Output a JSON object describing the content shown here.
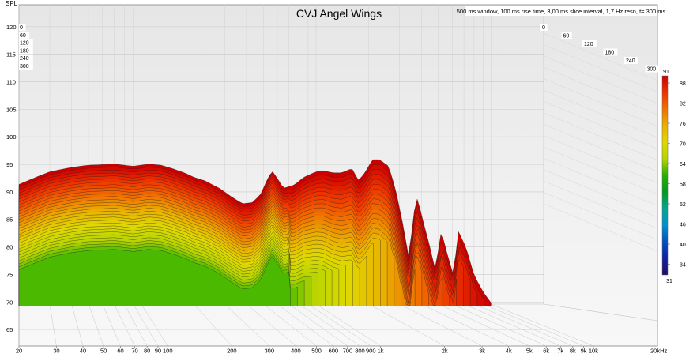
{
  "chart_data": {
    "type": "area",
    "title": "CVJ Angel Wings",
    "subtitle": "500 ms window, 100 ms rise time, 3,00 ms slice interval, 1,7 Hz resn, t= 300 ms",
    "ylabel": "SPL",
    "xlabel": "",
    "x_unit_label": "20kHz",
    "x_scale": "log",
    "xlim": [
      20,
      20000
    ],
    "ylim": [
      62,
      124
    ],
    "y_ticks": [
      65,
      70,
      75,
      80,
      85,
      90,
      95,
      100,
      105,
      110,
      115,
      120
    ],
    "x_ticks": [
      {
        "value": 20,
        "label": "20"
      },
      {
        "value": 30,
        "label": "30"
      },
      {
        "value": 40,
        "label": "40"
      },
      {
        "value": 50,
        "label": "50"
      },
      {
        "value": 60,
        "label": "60"
      },
      {
        "value": 70,
        "label": "70"
      },
      {
        "value": 80,
        "label": "80"
      },
      {
        "value": 90,
        "label": "90"
      },
      {
        "value": 100,
        "label": "100"
      },
      {
        "value": 200,
        "label": "200"
      },
      {
        "value": 300,
        "label": "300"
      },
      {
        "value": 400,
        "label": "400"
      },
      {
        "value": 500,
        "label": "500"
      },
      {
        "value": 600,
        "label": "600"
      },
      {
        "value": 700,
        "label": "700"
      },
      {
        "value": 800,
        "label": "800"
      },
      {
        "value": 900,
        "label": "900"
      },
      {
        "value": 1000,
        "label": "1k"
      },
      {
        "value": 2000,
        "label": "2k"
      },
      {
        "value": 3000,
        "label": "3k"
      },
      {
        "value": 4000,
        "label": "4k"
      },
      {
        "value": 5000,
        "label": "5k"
      },
      {
        "value": 6000,
        "label": "6k"
      },
      {
        "value": 7000,
        "label": "7k"
      },
      {
        "value": 8000,
        "label": "8k"
      },
      {
        "value": 9000,
        "label": "9k"
      },
      {
        "value": 10000,
        "label": "10k"
      }
    ],
    "time_axis_labels": [
      "0",
      "60",
      "120",
      "180",
      "240",
      "300"
    ],
    "time_axis_left_labels": [
      "0",
      "60",
      "120",
      "180",
      "240",
      "300"
    ],
    "colorbar": {
      "max_label": "91",
      "min_label": "31",
      "ticks": [
        "88",
        "82",
        "76",
        "70",
        "64",
        "58",
        "52",
        "46",
        "40",
        "34"
      ],
      "colors": [
        "#cc0000",
        "#ee3300",
        "#f07000",
        "#eab000",
        "#e0d800",
        "#b8d400",
        "#28b000",
        "#009a20",
        "#00a890",
        "#0090d0",
        "#0050c0",
        "#1020a0",
        "#201060"
      ]
    },
    "series": [
      {
        "values": [
          [
            20,
            91.5
          ],
          [
            25,
            92.8
          ],
          [
            30,
            93.8
          ],
          [
            40,
            94.6
          ],
          [
            50,
            95.0
          ],
          [
            60,
            95.1
          ],
          [
            70,
            95.2
          ],
          [
            80,
            95.0
          ],
          [
            90,
            94.8
          ],
          [
            100,
            95.0
          ],
          [
            110,
            95.2
          ],
          [
            130,
            95.0
          ],
          [
            150,
            94.4
          ],
          [
            180,
            93.5
          ],
          [
            200,
            92.8
          ],
          [
            230,
            92.2
          ],
          [
            280,
            90.8
          ],
          [
            330,
            89.2
          ],
          [
            380,
            88.0
          ],
          [
            430,
            88.2
          ],
          [
            480,
            89.6
          ],
          [
            530,
            92.6
          ],
          [
            560,
            94.0
          ],
          [
            600,
            92.6
          ],
          [
            650,
            90.8
          ],
          [
            750,
            91.4
          ],
          [
            850,
            92.8
          ],
          [
            1000,
            93.8
          ],
          [
            1100,
            94.0
          ],
          [
            1250,
            93.6
          ],
          [
            1400,
            93.6
          ],
          [
            1600,
            94.4
          ],
          [
            1750,
            92.2
          ],
          [
            1900,
            93.6
          ],
          [
            2100,
            96.0
          ],
          [
            2300,
            96.0
          ],
          [
            2600,
            94.8
          ],
          [
            2850,
            90.5
          ],
          [
            3100,
            85.0
          ],
          [
            3400,
            78.0
          ],
          [
            3600,
            86.0
          ],
          [
            3800,
            89.0
          ],
          [
            4000,
            86.0
          ],
          [
            4400,
            81.0
          ],
          [
            4800,
            76.0
          ],
          [
            5200,
            83.0
          ],
          [
            5600,
            79.0
          ],
          [
            6100,
            75.0
          ],
          [
            6500,
            83.0
          ],
          [
            7200,
            80.0
          ],
          [
            8000,
            75.0
          ],
          [
            9000,
            72.0
          ],
          [
            10000,
            70.0
          ]
        ]
      }
    ]
  }
}
